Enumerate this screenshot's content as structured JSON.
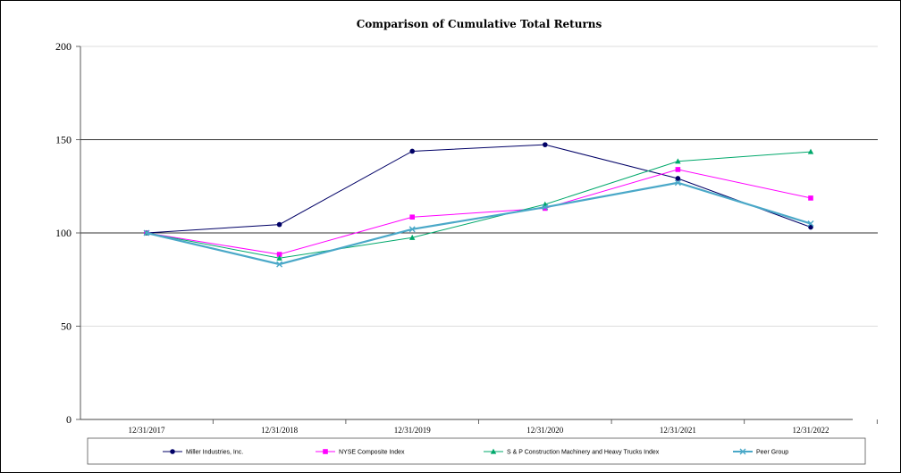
{
  "chart_data": {
    "type": "line",
    "title": "Comparison of Cumulative Total Returns",
    "xlabel": "",
    "ylabel": "",
    "categories": [
      "12/31/2017",
      "12/31/2018",
      "12/31/2019",
      "12/31/2020",
      "12/31/2021",
      "12/31/2022"
    ],
    "yticks": [
      0,
      50,
      100,
      150,
      200
    ],
    "ylim": [
      0,
      200
    ],
    "grid": "horizontal",
    "legend": "bottom",
    "series": [
      {
        "name": "Miller Industries, Inc.",
        "values": [
          100,
          104.5,
          143.8,
          147.3,
          129.2,
          103.1
        ],
        "color": "#000066",
        "marker": "circle"
      },
      {
        "name": "NYSE Composite Index",
        "values": [
          100,
          88.5,
          108.5,
          113.2,
          134.0,
          118.7
        ],
        "color": "#ff00ff",
        "marker": "square"
      },
      {
        "name": "S & P Construction Machinery and Heavy Trucks Index",
        "values": [
          100,
          86.5,
          97.5,
          115.3,
          138.4,
          143.5
        ],
        "color": "#00a86b",
        "marker": "triangle"
      },
      {
        "name": "Peer Group",
        "values": [
          100,
          83.2,
          102.0,
          113.8,
          126.9,
          105.0
        ],
        "color": "#4aa8c8",
        "marker": "x"
      }
    ]
  }
}
